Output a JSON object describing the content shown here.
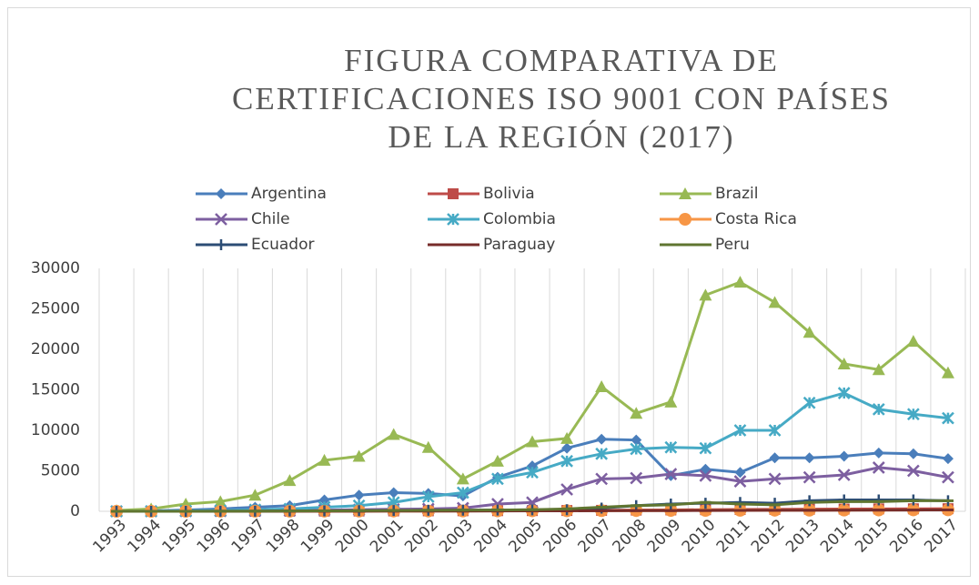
{
  "chart_data": {
    "type": "line",
    "title": "FIGURA COMPARATIVA DE CERTIFICACIONES ISO 9001 CON PAÍSES DE LA REGIÓN (2017)",
    "categories": [
      "1993",
      "1994",
      "1995",
      "1996",
      "1997",
      "1998",
      "1999",
      "2000",
      "2001",
      "2002",
      "2003",
      "2004",
      "2005",
      "2006",
      "2007",
      "2008",
      "2009",
      "2010",
      "2011",
      "2012",
      "2013",
      "2014",
      "2015",
      "2016",
      "2017"
    ],
    "ylim": [
      0,
      30000
    ],
    "yticks": [
      0,
      5000,
      10000,
      15000,
      20000,
      25000,
      30000
    ],
    "grid": "vertical",
    "legend": "top",
    "series": [
      {
        "name": "Argentina",
        "color": "#4a7ebb",
        "marker": "diamond",
        "values": [
          0,
          50,
          150,
          300,
          500,
          700,
          1400,
          2000,
          2300,
          2200,
          1900,
          4200,
          5600,
          7800,
          8900,
          8800,
          4400,
          5200,
          4800,
          6600,
          6600,
          6800,
          7200,
          7100,
          6500
        ]
      },
      {
        "name": "Bolivia",
        "color": "#be4b48",
        "marker": "square",
        "values": [
          0,
          0,
          0,
          5,
          10,
          20,
          30,
          40,
          50,
          60,
          70,
          80,
          90,
          100,
          120,
          150,
          170,
          200,
          220,
          240,
          260,
          280,
          300,
          310,
          320
        ]
      },
      {
        "name": "Brazil",
        "color": "#98b954",
        "marker": "triangle",
        "values": [
          100,
          300,
          900,
          1200,
          2000,
          3800,
          6300,
          6800,
          9500,
          7900,
          4000,
          6200,
          8600,
          9000,
          15400,
          12100,
          13500,
          26700,
          28300,
          25800,
          22100,
          18200,
          17500,
          21000,
          17100
        ]
      },
      {
        "name": "Chile",
        "color": "#7d5fa0",
        "marker": "x",
        "values": [
          0,
          0,
          10,
          30,
          60,
          100,
          150,
          200,
          250,
          300,
          400,
          900,
          1100,
          2700,
          4000,
          4100,
          4600,
          4400,
          3700,
          4000,
          4200,
          4500,
          5400,
          5000,
          4200
        ]
      },
      {
        "name": "Colombia",
        "color": "#46aac5",
        "marker": "star",
        "values": [
          0,
          20,
          50,
          100,
          200,
          300,
          500,
          700,
          1100,
          1800,
          2300,
          4000,
          4800,
          6200,
          7100,
          7700,
          7900,
          7800,
          10000,
          10000,
          13400,
          14600,
          12600,
          12000,
          11500
        ]
      },
      {
        "name": "Costa Rica",
        "color": "#f79646",
        "marker": "circle",
        "values": [
          0,
          0,
          0,
          5,
          10,
          15,
          20,
          25,
          30,
          35,
          40,
          50,
          60,
          70,
          80,
          90,
          100,
          110,
          120,
          130,
          140,
          150,
          160,
          170,
          180
        ]
      },
      {
        "name": "Ecuador",
        "color": "#2c4d75",
        "marker": "plus",
        "values": [
          0,
          0,
          5,
          10,
          20,
          40,
          60,
          80,
          100,
          120,
          140,
          160,
          180,
          200,
          400,
          700,
          900,
          1000,
          1100,
          1000,
          1300,
          1400,
          1400,
          1400,
          1300
        ]
      },
      {
        "name": "Paraguay",
        "color": "#772c2a",
        "marker": "dash",
        "values": [
          0,
          0,
          0,
          0,
          5,
          10,
          15,
          20,
          25,
          30,
          35,
          40,
          50,
          60,
          70,
          80,
          90,
          100,
          110,
          120,
          130,
          140,
          150,
          160,
          170
        ]
      },
      {
        "name": "Peru",
        "color": "#5f7530",
        "marker": "dash",
        "values": [
          0,
          0,
          5,
          10,
          20,
          40,
          60,
          80,
          100,
          120,
          140,
          160,
          200,
          300,
          500,
          700,
          800,
          1100,
          900,
          800,
          1100,
          1200,
          1200,
          1300,
          1300
        ]
      }
    ]
  }
}
